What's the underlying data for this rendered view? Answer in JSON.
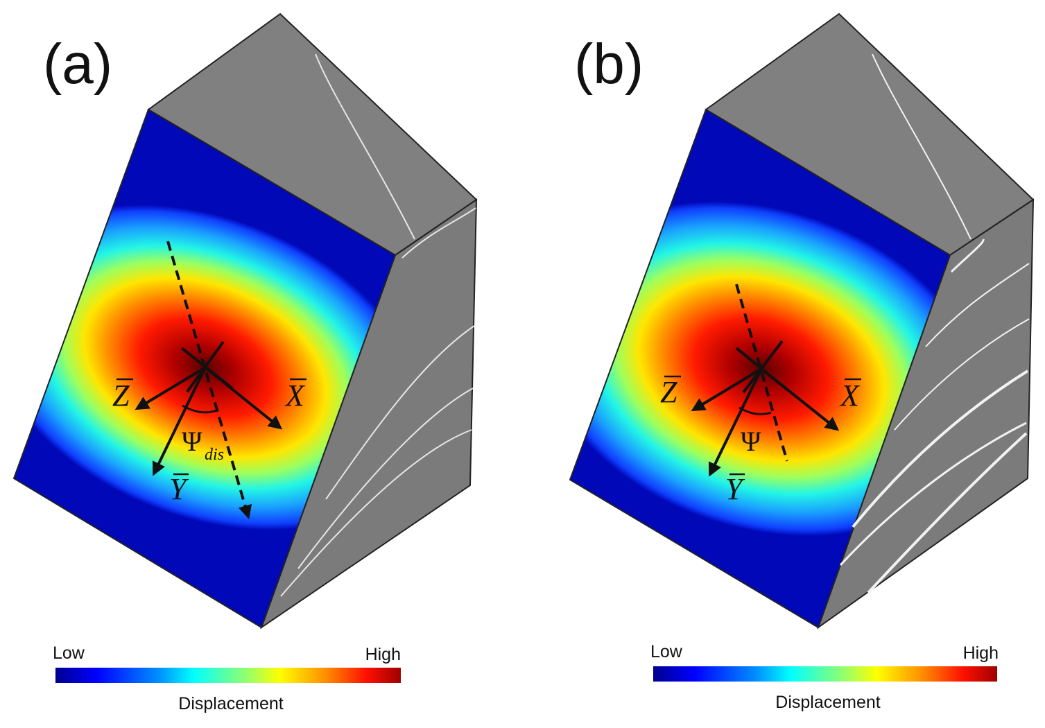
{
  "panels": [
    {
      "label": "(a)",
      "axes": {
        "x": "X",
        "y": "Y",
        "z": "Z"
      },
      "angle_symbol": "Ψ",
      "angle_subscript": "dis",
      "colorbar": {
        "low": "Low",
        "high": "High",
        "title": "Displacement"
      }
    },
    {
      "label": "(b)",
      "axes": {
        "x": "X",
        "y": "Y",
        "z": "Z"
      },
      "angle_symbol": "Ψ",
      "angle_subscript": "",
      "colorbar": {
        "low": "Low",
        "high": "High",
        "title": "Displacement"
      }
    }
  ],
  "colors": {
    "block_gray": "#808080",
    "edge": "#222222",
    "jet": [
      "#00008f",
      "#0000ff",
      "#0080ff",
      "#00ffff",
      "#80ff80",
      "#ffff00",
      "#ff8000",
      "#ff0000",
      "#800000"
    ]
  }
}
